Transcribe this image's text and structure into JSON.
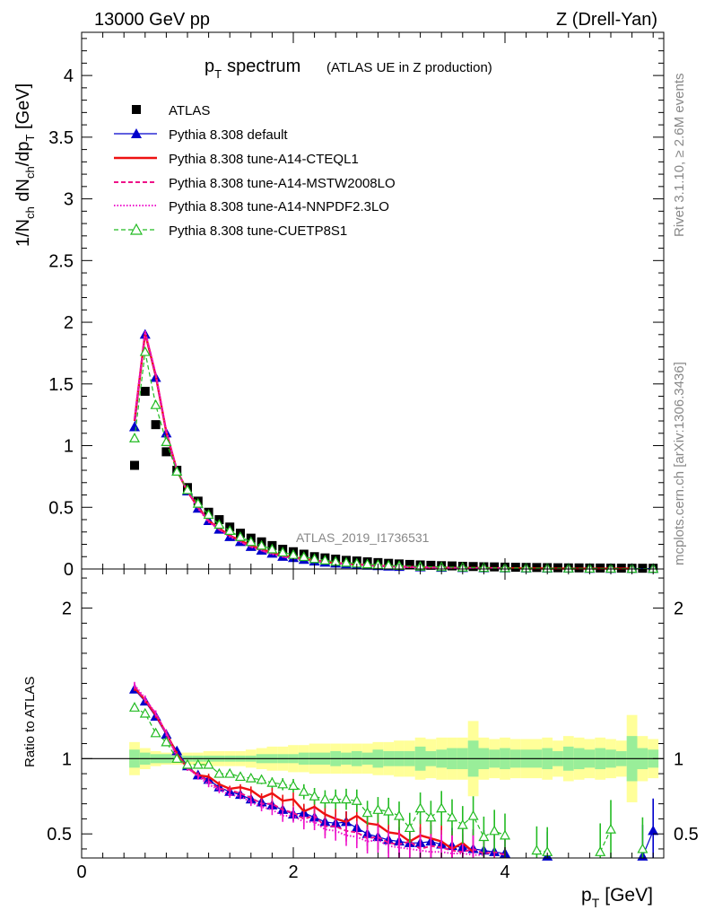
{
  "header": {
    "beam": "13000 GeV pp",
    "process": "Z (Drell-Yan)"
  },
  "side": {
    "rivet": "Rivet 3.1.10, ≥ 2.6M events",
    "mcplots": "mcplots.cern.ch [arXiv:1306.3436]"
  },
  "chart_data": [
    {
      "type": "scatter",
      "panel": "main",
      "title_main": "p",
      "title_sub": "T",
      "title_word": "spectrum",
      "title_note": "(ATLAS UE in Z production)",
      "analysis_label": "ATLAS_2019_I1736531",
      "ylabel": "1/N_ch dN_ch/dp_T [GeV]",
      "ylabel_parts": {
        "a": "1/N",
        "b": "ch",
        "c": " dN",
        "d": "ch",
        "e": "/dp",
        "f": "T",
        "g": " [GeV]"
      },
      "xlim": [
        0,
        5.5
      ],
      "ylim": [
        0,
        4.35
      ],
      "xticks": [
        "0",
        "2",
        "4"
      ],
      "yticks": [
        "0",
        "0.5",
        "1",
        "1.5",
        "2",
        "2.5",
        "3",
        "3.5",
        "4"
      ],
      "legend": [
        "ATLAS",
        "Pythia 8.308 default",
        "Pythia 8.308 tune-A14-CTEQL1",
        "Pythia 8.308 tune-A14-MSTW2008LO",
        "Pythia 8.308 tune-A14-NNPDF2.3LO",
        "Pythia 8.308 tune-CUETP8S1"
      ],
      "colors": {
        "data": "#000000",
        "default": "#0000cc",
        "cteql1": "#ee1111",
        "mstw": "#ee1188",
        "nnpdf": "#ee11cc",
        "cuetp8s1": "#22bb22"
      },
      "series": [
        {
          "name": "ATLAS",
          "x": [
            0.5,
            0.6,
            0.7,
            0.8,
            0.9,
            1.0,
            1.1,
            1.2,
            1.3,
            1.4,
            1.5,
            1.6,
            1.7,
            1.8,
            1.9,
            2.0,
            2.1,
            2.2,
            2.3,
            2.4,
            2.5,
            2.6,
            2.7,
            2.8,
            2.9,
            3.0,
            3.1,
            3.2,
            3.3,
            3.4,
            3.5,
            3.6,
            3.7,
            3.8,
            3.9,
            4.0,
            4.1,
            4.2,
            4.3,
            4.4,
            4.5,
            4.6,
            4.7,
            4.8,
            4.9,
            5.0,
            5.1,
            5.2,
            5.3,
            5.4
          ],
          "y": [
            0.84,
            1.44,
            1.17,
            0.95,
            0.8,
            0.66,
            0.55,
            0.46,
            0.4,
            0.34,
            0.29,
            0.25,
            0.22,
            0.19,
            0.16,
            0.14,
            0.12,
            0.1,
            0.09,
            0.08,
            0.07,
            0.065,
            0.058,
            0.052,
            0.046,
            0.041,
            0.037,
            0.033,
            0.03,
            0.027,
            0.025,
            0.022,
            0.02,
            0.018,
            0.017,
            0.015,
            0.014,
            0.013,
            0.012,
            0.011,
            0.01,
            0.009,
            0.009,
            0.008,
            0.008,
            0.007,
            0.007,
            0.006,
            0.006,
            0.006
          ]
        },
        {
          "name": "Pythia 8.308 default",
          "x": [
            0.5,
            0.6,
            0.7,
            0.8,
            0.9,
            1.0,
            1.1,
            1.2,
            1.3,
            1.4,
            1.5,
            1.6,
            1.7,
            1.8,
            1.9,
            2.0,
            2.1,
            2.2,
            2.3,
            2.4,
            2.5,
            2.6,
            2.7,
            2.8,
            2.9,
            3.0,
            3.2,
            3.4,
            3.6,
            3.8,
            4.0,
            4.2,
            4.4,
            4.6,
            4.8,
            5.0,
            5.2,
            5.4
          ],
          "y": [
            1.15,
            1.9,
            1.55,
            1.1,
            0.79,
            0.63,
            0.49,
            0.39,
            0.32,
            0.26,
            0.22,
            0.18,
            0.15,
            0.125,
            0.1,
            0.09,
            0.075,
            0.062,
            0.053,
            0.045,
            0.039,
            0.033,
            0.028,
            0.024,
            0.021,
            0.018,
            0.014,
            0.011,
            0.009,
            0.007,
            0.006,
            0.005,
            0.004,
            0.004,
            0.003,
            0.003,
            0.003,
            0.003
          ]
        },
        {
          "name": "Pythia 8.308 tune-A14-CTEQL1",
          "x": [
            0.5,
            0.6,
            0.7,
            0.8,
            0.9,
            1.0,
            1.1,
            1.2,
            1.3,
            1.4,
            1.5,
            1.6,
            1.7,
            1.8,
            1.9,
            2.0,
            2.2,
            2.4,
            2.6,
            2.8,
            3.0,
            3.2,
            3.4,
            3.6,
            3.8,
            4.0,
            4.4,
            4.8,
            5.2
          ],
          "y": [
            1.2,
            1.91,
            1.57,
            1.11,
            0.8,
            0.63,
            0.5,
            0.39,
            0.33,
            0.27,
            0.23,
            0.19,
            0.16,
            0.13,
            0.11,
            0.095,
            0.068,
            0.049,
            0.037,
            0.027,
            0.02,
            0.015,
            0.012,
            0.009,
            0.007,
            0.006,
            0.004,
            0.003,
            0.003
          ]
        },
        {
          "name": "Pythia 8.308 tune-A14-MSTW2008LO",
          "x": [
            0.5,
            0.6,
            0.7,
            0.8,
            0.9,
            1.0,
            1.1,
            1.2,
            1.3,
            1.4,
            1.5,
            1.6,
            1.7,
            1.8,
            1.9,
            2.0,
            2.2,
            2.4,
            2.6,
            2.8,
            3.0,
            3.2,
            3.4,
            3.6,
            3.8,
            4.0
          ],
          "y": [
            1.21,
            1.92,
            1.58,
            1.11,
            0.8,
            0.63,
            0.5,
            0.39,
            0.32,
            0.27,
            0.22,
            0.18,
            0.15,
            0.125,
            0.1,
            0.09,
            0.065,
            0.047,
            0.035,
            0.026,
            0.019,
            0.014,
            0.011,
            0.008,
            0.006,
            0.005
          ]
        },
        {
          "name": "Pythia 8.308 tune-A14-NNPDF2.3LO",
          "x": [
            0.5,
            0.6,
            0.7,
            0.8,
            0.9,
            1.0,
            1.1,
            1.2,
            1.3,
            1.4,
            1.5,
            1.6,
            1.7,
            1.8,
            1.9,
            2.0,
            2.2,
            2.4,
            2.6,
            2.8,
            3.0,
            3.2,
            3.4,
            3.6,
            3.8,
            4.0
          ],
          "y": [
            1.22,
            1.93,
            1.58,
            1.12,
            0.8,
            0.63,
            0.49,
            0.38,
            0.32,
            0.26,
            0.22,
            0.18,
            0.15,
            0.12,
            0.1,
            0.088,
            0.063,
            0.046,
            0.034,
            0.025,
            0.018,
            0.014,
            0.01,
            0.008,
            0.006,
            0.005
          ]
        },
        {
          "name": "Pythia 8.308 tune-CUETP8S1",
          "x": [
            0.5,
            0.6,
            0.7,
            0.8,
            0.9,
            1.0,
            1.1,
            1.2,
            1.3,
            1.4,
            1.5,
            1.6,
            1.7,
            1.8,
            1.9,
            2.0,
            2.1,
            2.2,
            2.3,
            2.4,
            2.5,
            2.6,
            2.7,
            2.8,
            2.9,
            3.0,
            3.2,
            3.4,
            3.6,
            3.8,
            4.0,
            4.2,
            4.4,
            4.6,
            4.8,
            5.0,
            5.2,
            5.4
          ],
          "y": [
            1.06,
            1.76,
            1.33,
            1.03,
            0.79,
            0.64,
            0.53,
            0.44,
            0.36,
            0.31,
            0.26,
            0.22,
            0.19,
            0.16,
            0.135,
            0.115,
            0.098,
            0.082,
            0.07,
            0.06,
            0.052,
            0.045,
            0.039,
            0.034,
            0.029,
            0.026,
            0.02,
            0.016,
            0.013,
            0.01,
            0.008,
            0.007,
            0.006,
            0.005,
            0.004,
            0.004,
            0.003,
            0.003
          ]
        }
      ]
    },
    {
      "type": "scatter",
      "panel": "ratio",
      "ylabel": "Ratio to ATLAS",
      "xlabel_main": "p",
      "xlabel_sub": "T",
      "xlabel_unit": "[GeV]",
      "xlim": [
        0,
        5.5
      ],
      "ylim": [
        0.34,
        2.26
      ],
      "xticks": [
        "0",
        "2",
        "4"
      ],
      "yticks": [
        "0.5",
        "1",
        "2"
      ],
      "band_x": [
        0.5,
        0.6,
        0.7,
        0.8,
        0.9,
        1.0,
        1.1,
        1.2,
        1.3,
        1.4,
        1.5,
        1.6,
        1.7,
        1.8,
        1.9,
        2.0,
        2.1,
        2.2,
        2.3,
        2.4,
        2.5,
        2.6,
        2.7,
        2.8,
        2.9,
        3.0,
        3.1,
        3.2,
        3.3,
        3.4,
        3.5,
        3.6,
        3.7,
        3.8,
        3.9,
        4.0,
        4.1,
        4.2,
        4.3,
        4.4,
        4.5,
        4.6,
        4.7,
        4.8,
        4.9,
        5.0,
        5.1,
        5.2,
        5.3,
        5.4
      ],
      "band_stat": [
        0.06,
        0.04,
        0.03,
        0.03,
        0.02,
        0.02,
        0.02,
        0.02,
        0.02,
        0.02,
        0.02,
        0.02,
        0.03,
        0.03,
        0.03,
        0.03,
        0.04,
        0.04,
        0.04,
        0.05,
        0.04,
        0.05,
        0.04,
        0.06,
        0.05,
        0.05,
        0.05,
        0.08,
        0.05,
        0.06,
        0.07,
        0.07,
        0.12,
        0.07,
        0.06,
        0.07,
        0.06,
        0.06,
        0.06,
        0.07,
        0.05,
        0.08,
        0.07,
        0.06,
        0.07,
        0.06,
        0.05,
        0.15,
        0.07,
        0.06
      ],
      "band_syst": [
        0.11,
        0.07,
        0.05,
        0.04,
        0.04,
        0.04,
        0.04,
        0.05,
        0.05,
        0.05,
        0.05,
        0.06,
        0.07,
        0.08,
        0.08,
        0.09,
        0.09,
        0.1,
        0.1,
        0.1,
        0.1,
        0.1,
        0.1,
        0.11,
        0.11,
        0.12,
        0.12,
        0.14,
        0.13,
        0.14,
        0.14,
        0.14,
        0.25,
        0.14,
        0.13,
        0.14,
        0.13,
        0.13,
        0.13,
        0.14,
        0.12,
        0.15,
        0.14,
        0.13,
        0.14,
        0.13,
        0.12,
        0.29,
        0.15,
        0.13
      ],
      "series": [
        {
          "name": "Pythia 8.308 default",
          "x": [
            0.5,
            0.6,
            0.7,
            0.8,
            0.9,
            1.0,
            1.1,
            1.2,
            1.3,
            1.4,
            1.5,
            1.6,
            1.7,
            1.8,
            1.9,
            2.0,
            2.1,
            2.2,
            2.3,
            2.4,
            2.5,
            2.6,
            2.7,
            2.8,
            2.9,
            3.0,
            3.1,
            3.2,
            3.3,
            3.4,
            3.5,
            3.6,
            3.7,
            3.8,
            3.9,
            4.0,
            4.4,
            5.3,
            5.4
          ],
          "y": [
            1.46,
            1.38,
            1.28,
            1.16,
            1.05,
            0.95,
            0.89,
            0.86,
            0.81,
            0.78,
            0.76,
            0.73,
            0.71,
            0.69,
            0.66,
            0.63,
            0.64,
            0.61,
            0.58,
            0.57,
            0.58,
            0.54,
            0.5,
            0.48,
            0.46,
            0.45,
            0.44,
            0.44,
            0.45,
            0.43,
            0.42,
            0.41,
            0.4,
            0.39,
            0.38,
            0.37,
            0.35,
            0.35,
            0.52
          ]
        },
        {
          "name": "Pythia 8.308 tune-A14-CTEQL1",
          "x": [
            0.5,
            0.6,
            0.7,
            0.8,
            0.9,
            1.0,
            1.1,
            1.2,
            1.3,
            1.4,
            1.5,
            1.6,
            1.7,
            1.8,
            1.9,
            2.0,
            2.1,
            2.2,
            2.3,
            2.4,
            2.5,
            2.6,
            2.7,
            2.8,
            2.9,
            3.0,
            3.1,
            3.2,
            3.3,
            3.4,
            3.5,
            3.6,
            3.7
          ],
          "y": [
            1.47,
            1.39,
            1.29,
            1.17,
            1.03,
            0.94,
            0.89,
            0.88,
            0.83,
            0.8,
            0.81,
            0.79,
            0.74,
            0.77,
            0.72,
            0.73,
            0.65,
            0.68,
            0.63,
            0.6,
            0.58,
            0.62,
            0.57,
            0.56,
            0.51,
            0.5,
            0.45,
            0.49,
            0.47,
            0.45,
            0.4,
            0.44,
            0.38
          ]
        },
        {
          "name": "Pythia 8.308 tune-A14-MSTW2008LO",
          "x": [
            0.5,
            0.6,
            0.7,
            0.8,
            0.9,
            1.0,
            1.1,
            1.2,
            1.3,
            1.4,
            1.5,
            1.6,
            1.7,
            1.8,
            1.9,
            2.0,
            2.1,
            2.2,
            2.3,
            2.4,
            2.5,
            2.6,
            2.7,
            2.8,
            2.9,
            3.0,
            3.1,
            3.2,
            3.3,
            3.4,
            3.5,
            3.6,
            3.7,
            3.8,
            3.9,
            4.0
          ],
          "y": [
            1.48,
            1.39,
            1.3,
            1.17,
            1.02,
            0.94,
            0.89,
            0.85,
            0.8,
            0.79,
            0.77,
            0.74,
            0.7,
            0.7,
            0.66,
            0.64,
            0.6,
            0.62,
            0.55,
            0.55,
            0.52,
            0.51,
            0.47,
            0.48,
            0.44,
            0.43,
            0.45,
            0.4,
            0.42,
            0.41,
            0.39,
            0.38,
            0.4,
            0.37,
            0.38,
            0.36
          ]
        },
        {
          "name": "Pythia 8.308 tune-A14-NNPDF2.3LO",
          "x": [
            0.5,
            0.6,
            0.7,
            0.8,
            0.9,
            1.0,
            1.1,
            1.2,
            1.3,
            1.4,
            1.5,
            1.6,
            1.7,
            1.8,
            1.9,
            2.0,
            2.1,
            2.2,
            2.3,
            2.4,
            2.5,
            2.6,
            2.7,
            2.8,
            2.9,
            3.0,
            3.1,
            3.2,
            3.3,
            3.4,
            3.5,
            3.6,
            3.7,
            3.8
          ],
          "y": [
            1.49,
            1.4,
            1.3,
            1.17,
            1.01,
            0.94,
            0.88,
            0.83,
            0.79,
            0.76,
            0.75,
            0.71,
            0.68,
            0.66,
            0.62,
            0.62,
            0.58,
            0.58,
            0.53,
            0.52,
            0.49,
            0.48,
            0.45,
            0.46,
            0.42,
            0.41,
            0.4,
            0.39,
            0.38,
            0.38,
            0.37,
            0.37,
            0.36,
            0.36
          ]
        },
        {
          "name": "Pythia 8.308 tune-CUETP8S1",
          "x": [
            0.5,
            0.6,
            0.7,
            0.8,
            0.9,
            1.0,
            1.1,
            1.2,
            1.3,
            1.4,
            1.5,
            1.6,
            1.7,
            1.8,
            1.9,
            2.0,
            2.1,
            2.2,
            2.3,
            2.4,
            2.5,
            2.6,
            2.7,
            2.8,
            2.9,
            3.0,
            3.1,
            3.2,
            3.3,
            3.4,
            3.5,
            3.6,
            3.7,
            3.8,
            3.9,
            4.0,
            4.3,
            4.4,
            4.9,
            5.0,
            5.3
          ],
          "y": [
            1.34,
            1.3,
            1.17,
            1.11,
            1.0,
            0.96,
            0.96,
            0.96,
            0.9,
            0.9,
            0.88,
            0.87,
            0.86,
            0.84,
            0.83,
            0.82,
            0.78,
            0.75,
            0.73,
            0.73,
            0.73,
            0.72,
            0.64,
            0.66,
            0.65,
            0.62,
            0.54,
            0.67,
            0.61,
            0.67,
            0.61,
            0.56,
            0.62,
            0.48,
            0.52,
            0.49,
            0.39,
            0.38,
            0.38,
            0.53,
            0.4
          ]
        }
      ]
    }
  ]
}
